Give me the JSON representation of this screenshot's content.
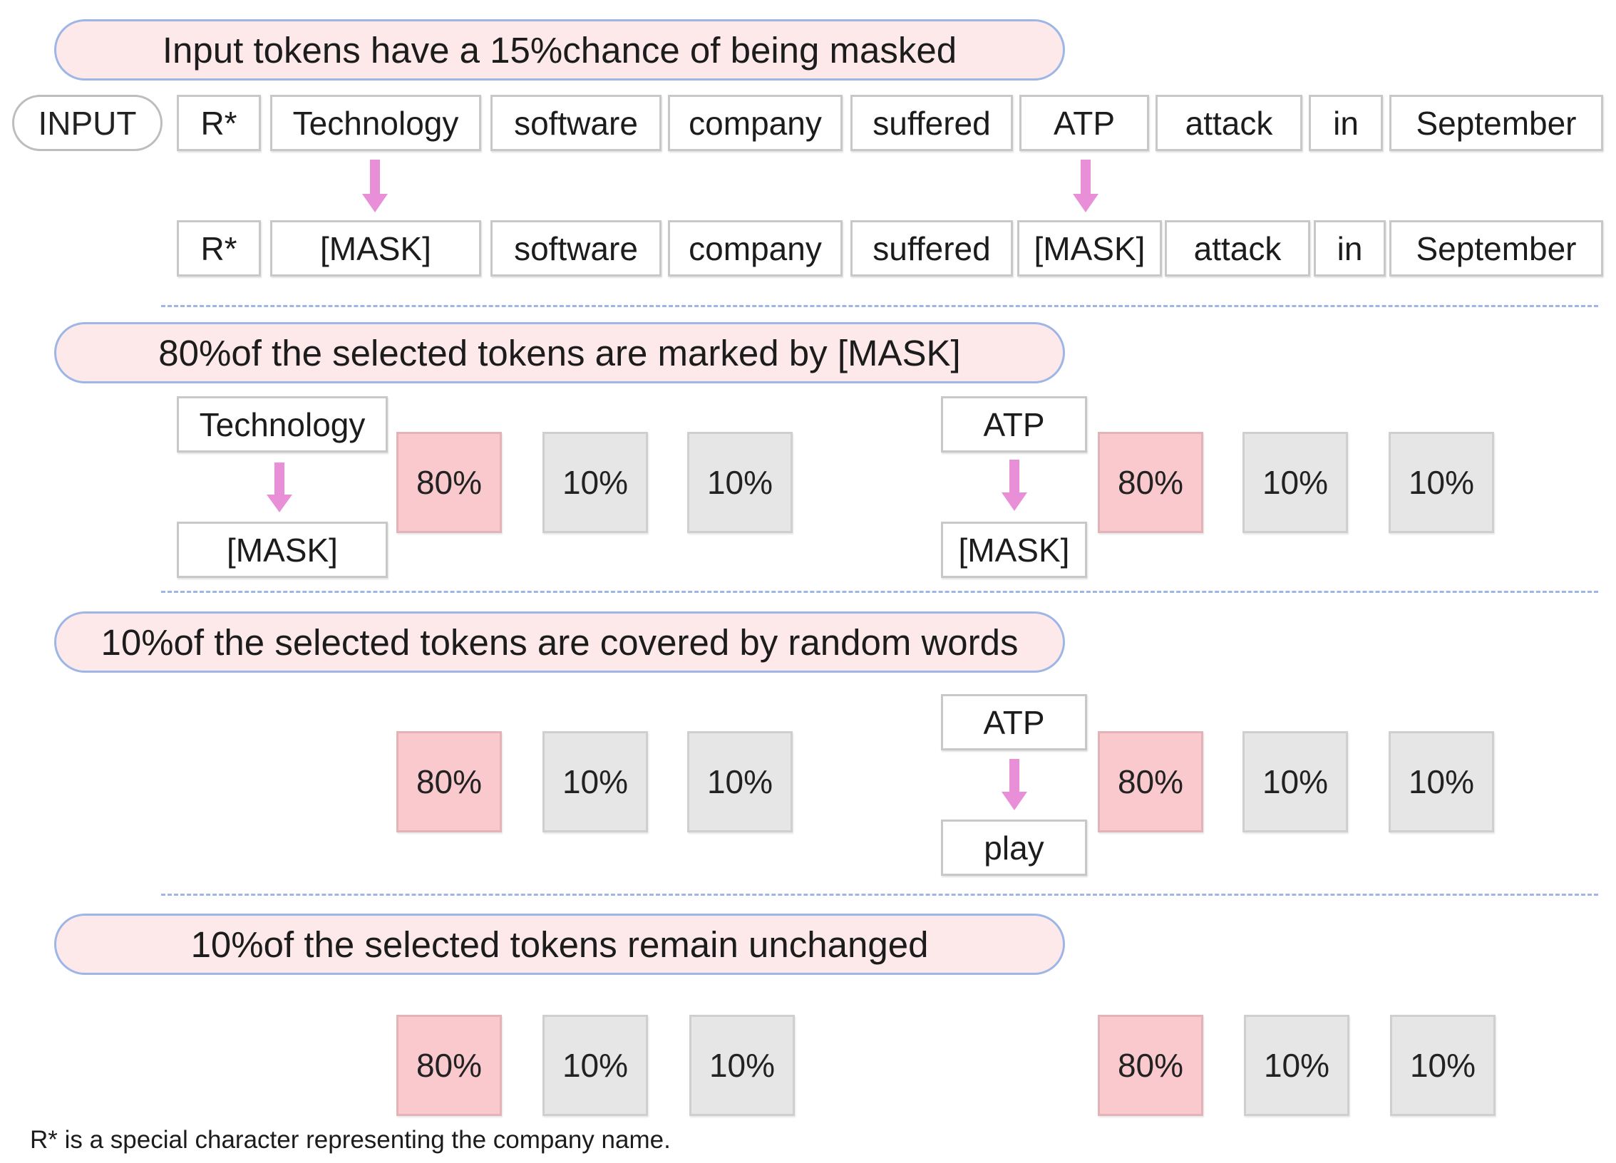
{
  "sections": {
    "s1_title": "Input tokens have a 15%chance of being masked",
    "s2_title": "80%of the selected tokens are marked by [MASK]",
    "s3_title": "10%of the selected tokens are covered by random words",
    "s4_title": "10%of the selected tokens remain unchanged"
  },
  "input_label": "INPUT",
  "input_tokens": [
    "R*",
    "Technology",
    "software",
    "company",
    "suffered",
    "ATP",
    "attack",
    "in",
    "September"
  ],
  "masked_tokens": [
    "R*",
    "[MASK]",
    "software",
    "company",
    "suffered",
    "[MASK]",
    "attack",
    "in",
    "September"
  ],
  "examples": {
    "s2_left_from": "Technology",
    "s2_left_to": "[MASK]",
    "s2_right_from": "ATP",
    "s2_right_to": "[MASK]",
    "s3_right_from": "ATP",
    "s3_right_to": "play"
  },
  "percent_groups": {
    "values": [
      "80%",
      "10%",
      "10%"
    ]
  },
  "footnote": "R* is a special character representing the company name.",
  "colors": {
    "pill_fill": "#fde9ea",
    "pill_border": "#9db6e6",
    "highlight_box": "#f9c9cd",
    "neutral_box": "#e6e6e6",
    "arrow": "#e98fd8"
  }
}
